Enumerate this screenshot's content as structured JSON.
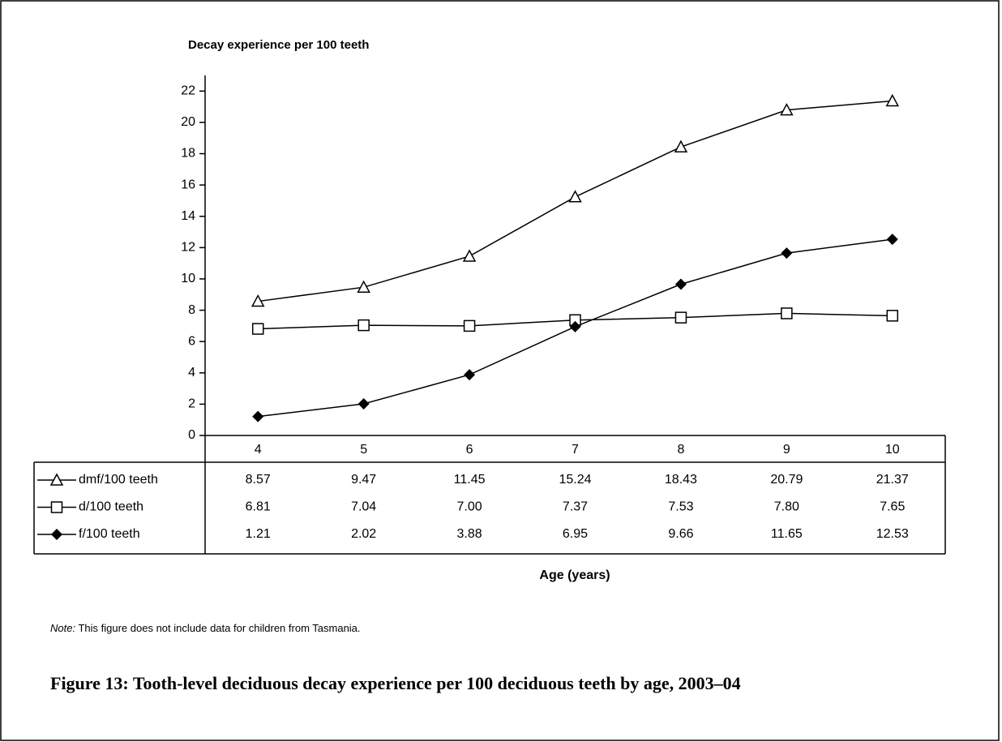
{
  "chart_data": {
    "type": "line",
    "title": "Decay experience per 100 teeth",
    "xlabel": "Age (years)",
    "categories": [
      "4",
      "5",
      "6",
      "7",
      "8",
      "9",
      "10"
    ],
    "series": [
      {
        "name": "dmf/100 teeth",
        "color": "#000000",
        "marker": "triangle",
        "values": [
          8.57,
          9.47,
          11.45,
          15.24,
          18.43,
          20.79,
          21.37
        ],
        "value_labels": [
          "8.57",
          "9.47",
          "11.45",
          "15.24",
          "18.43",
          "20.79",
          "21.37"
        ]
      },
      {
        "name": "d/100 teeth",
        "color": "#000000",
        "marker": "square",
        "values": [
          6.81,
          7.04,
          7.0,
          7.37,
          7.53,
          7.8,
          7.65
        ],
        "value_labels": [
          "6.81",
          "7.04",
          "7.00",
          "7.37",
          "7.53",
          "7.80",
          "7.65"
        ]
      },
      {
        "name": "f/100 teeth",
        "color": "#000000",
        "marker": "diamond",
        "values": [
          1.21,
          2.02,
          3.88,
          6.95,
          9.66,
          11.65,
          12.53
        ],
        "value_labels": [
          "1.21",
          "2.02",
          "3.88",
          "6.95",
          "9.66",
          "11.65",
          "12.53"
        ]
      }
    ],
    "ylim": [
      0,
      23
    ],
    "yticks": [
      0,
      2,
      4,
      6,
      8,
      10,
      12,
      14,
      16,
      18,
      20,
      22
    ]
  },
  "note": {
    "label": "Note:",
    "text": "This figure does not include data for children from Tasmania."
  },
  "caption": "Figure 13: Tooth-level deciduous decay experience per 100 deciduous teeth by age, 2003–04"
}
